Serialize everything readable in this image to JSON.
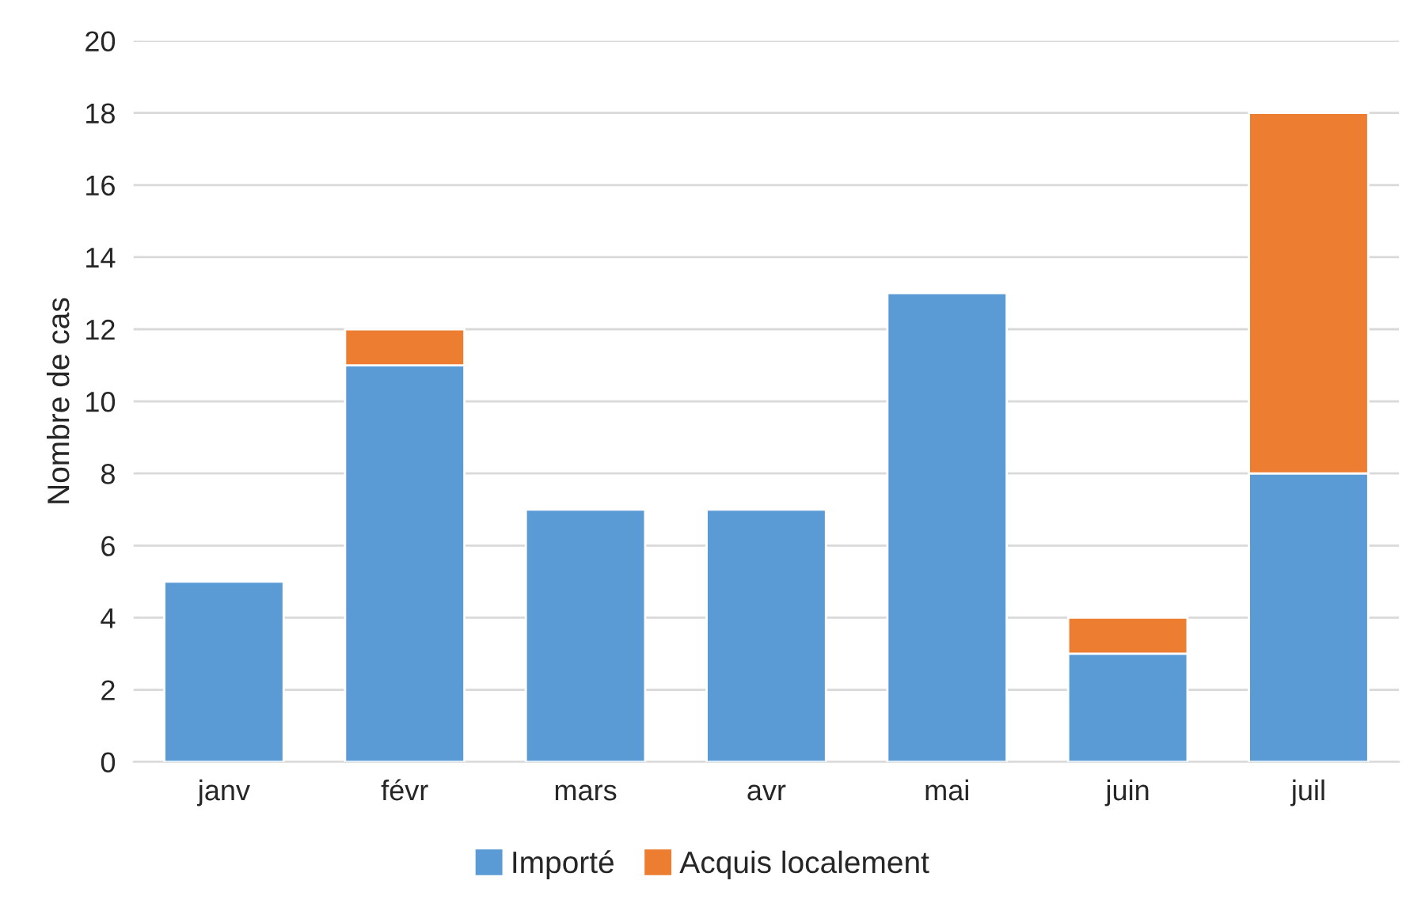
{
  "chart_data": {
    "type": "bar",
    "stacked": true,
    "ylabel": "Nombre de cas",
    "categories": [
      "janv",
      "févr",
      "mars",
      "avr",
      "mai",
      "juin",
      "juil"
    ],
    "series": [
      {
        "name": "Importé",
        "color": "#5b9bd5",
        "values": [
          5,
          11,
          7,
          7,
          13,
          3,
          8
        ]
      },
      {
        "name": "Acquis localement",
        "color": "#ed7d31",
        "values": [
          null,
          1,
          null,
          null,
          null,
          1,
          10
        ]
      }
    ],
    "ylim": [
      0,
      20
    ],
    "yticks": [
      0,
      2,
      4,
      6,
      8,
      10,
      12,
      14,
      16,
      18,
      20
    ],
    "grid": "y",
    "legend": "bottom"
  }
}
